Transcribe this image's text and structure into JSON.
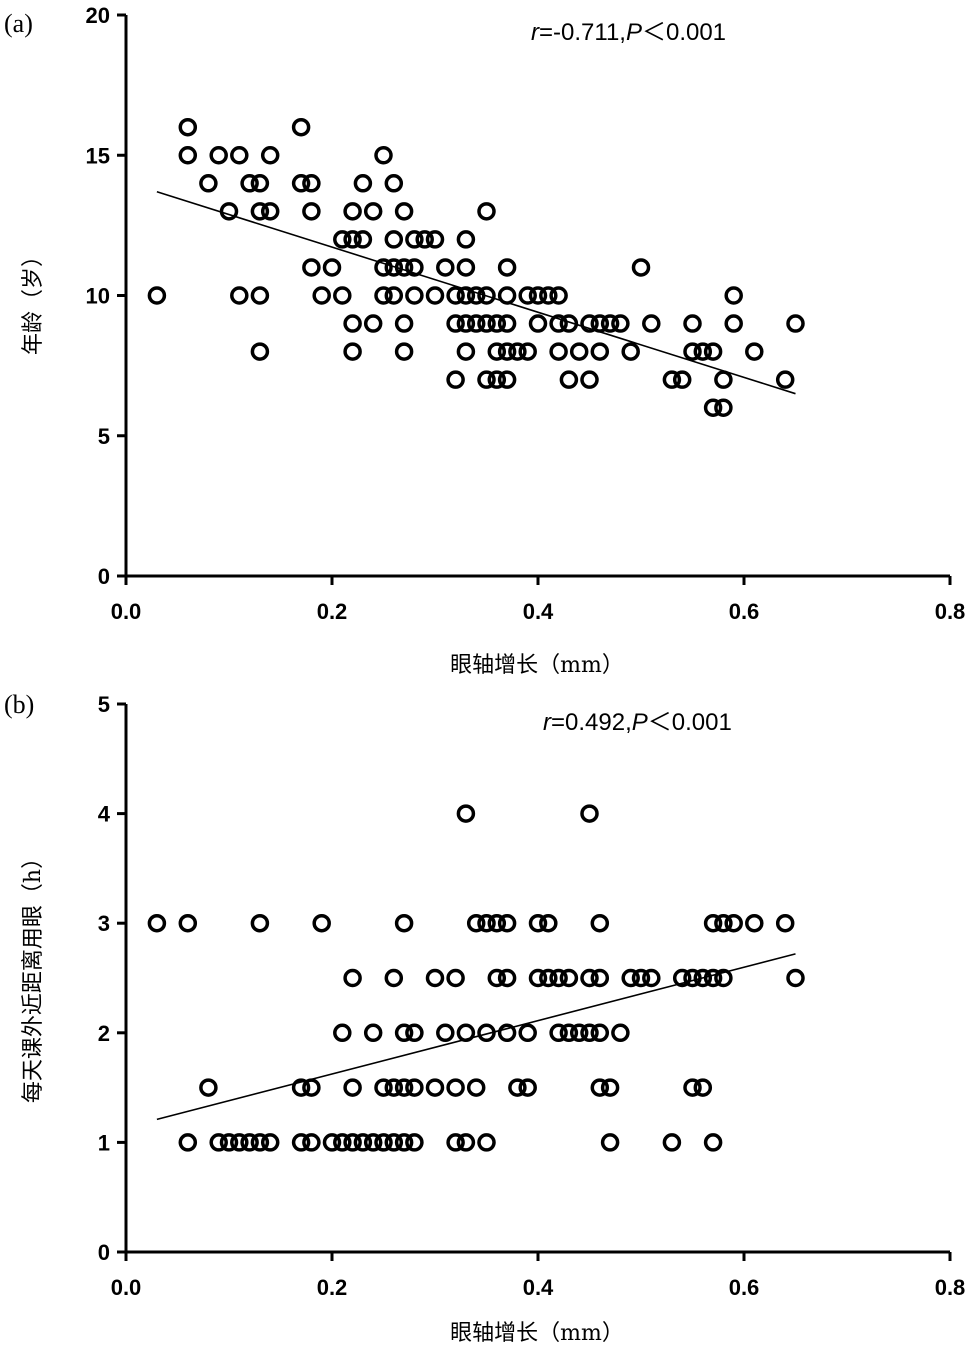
{
  "chart_data": [
    {
      "type": "scatter",
      "panel_label": "(a)",
      "xlabel": "眼轴增长（mm）",
      "ylabel": "年龄（岁）",
      "xlim": [
        0.0,
        0.8
      ],
      "ylim": [
        0,
        20
      ],
      "x_ticks": [
        "0.0",
        "0.2",
        "0.4",
        "0.6",
        "0.8"
      ],
      "y_ticks": [
        "0",
        "5",
        "10",
        "15",
        "20"
      ],
      "stat": {
        "r_label": "r",
        "r_value": "=-0.711,",
        "p_label": "P",
        "p_value": "＜0.001"
      },
      "fit_line": {
        "x": [
          0.03,
          0.65
        ],
        "y": [
          13.7,
          6.5
        ]
      },
      "points": [
        [
          0.03,
          10
        ],
        [
          0.06,
          16
        ],
        [
          0.06,
          15
        ],
        [
          0.08,
          14
        ],
        [
          0.09,
          15
        ],
        [
          0.1,
          13
        ],
        [
          0.11,
          15
        ],
        [
          0.11,
          10
        ],
        [
          0.12,
          14
        ],
        [
          0.13,
          14
        ],
        [
          0.13,
          13
        ],
        [
          0.13,
          10
        ],
        [
          0.13,
          8
        ],
        [
          0.14,
          15
        ],
        [
          0.14,
          13
        ],
        [
          0.17,
          16
        ],
        [
          0.17,
          14
        ],
        [
          0.18,
          14
        ],
        [
          0.18,
          13
        ],
        [
          0.18,
          11
        ],
        [
          0.19,
          10
        ],
        [
          0.2,
          11
        ],
        [
          0.21,
          12
        ],
        [
          0.21,
          10
        ],
        [
          0.22,
          13
        ],
        [
          0.22,
          12
        ],
        [
          0.22,
          9
        ],
        [
          0.22,
          8
        ],
        [
          0.23,
          14
        ],
        [
          0.23,
          12
        ],
        [
          0.24,
          13
        ],
        [
          0.24,
          9
        ],
        [
          0.25,
          15
        ],
        [
          0.25,
          11
        ],
        [
          0.25,
          10
        ],
        [
          0.26,
          14
        ],
        [
          0.26,
          12
        ],
        [
          0.26,
          11
        ],
        [
          0.26,
          10
        ],
        [
          0.27,
          13
        ],
        [
          0.27,
          11
        ],
        [
          0.27,
          9
        ],
        [
          0.27,
          8
        ],
        [
          0.28,
          12
        ],
        [
          0.28,
          11
        ],
        [
          0.28,
          10
        ],
        [
          0.29,
          12
        ],
        [
          0.3,
          12
        ],
        [
          0.3,
          10
        ],
        [
          0.31,
          11
        ],
        [
          0.32,
          10
        ],
        [
          0.32,
          9
        ],
        [
          0.32,
          7
        ],
        [
          0.33,
          12
        ],
        [
          0.33,
          11
        ],
        [
          0.33,
          10
        ],
        [
          0.33,
          9
        ],
        [
          0.33,
          8
        ],
        [
          0.34,
          10
        ],
        [
          0.34,
          9
        ],
        [
          0.35,
          13
        ],
        [
          0.35,
          10
        ],
        [
          0.35,
          9
        ],
        [
          0.35,
          7
        ],
        [
          0.36,
          9
        ],
        [
          0.36,
          8
        ],
        [
          0.36,
          7
        ],
        [
          0.37,
          11
        ],
        [
          0.37,
          10
        ],
        [
          0.37,
          9
        ],
        [
          0.37,
          8
        ],
        [
          0.37,
          7
        ],
        [
          0.38,
          8
        ],
        [
          0.39,
          10
        ],
        [
          0.39,
          8
        ],
        [
          0.4,
          10
        ],
        [
          0.4,
          9
        ],
        [
          0.41,
          10
        ],
        [
          0.42,
          10
        ],
        [
          0.42,
          9
        ],
        [
          0.42,
          8
        ],
        [
          0.43,
          9
        ],
        [
          0.43,
          7
        ],
        [
          0.44,
          8
        ],
        [
          0.45,
          9
        ],
        [
          0.45,
          7
        ],
        [
          0.46,
          9
        ],
        [
          0.46,
          8
        ],
        [
          0.47,
          9
        ],
        [
          0.48,
          9
        ],
        [
          0.49,
          8
        ],
        [
          0.5,
          11
        ],
        [
          0.51,
          9
        ],
        [
          0.53,
          7
        ],
        [
          0.54,
          7
        ],
        [
          0.55,
          9
        ],
        [
          0.55,
          8
        ],
        [
          0.56,
          8
        ],
        [
          0.57,
          8
        ],
        [
          0.57,
          6
        ],
        [
          0.58,
          7
        ],
        [
          0.58,
          6
        ],
        [
          0.59,
          10
        ],
        [
          0.59,
          9
        ],
        [
          0.61,
          8
        ],
        [
          0.64,
          7
        ],
        [
          0.65,
          9
        ]
      ]
    },
    {
      "type": "scatter",
      "panel_label": "(b)",
      "xlabel": "眼轴增长（mm）",
      "ylabel": "每天课外近距离用眼（h）",
      "xlim": [
        0.0,
        0.8
      ],
      "ylim": [
        0,
        5
      ],
      "x_ticks": [
        "0.0",
        "0.2",
        "0.4",
        "0.6",
        "0.8"
      ],
      "y_ticks": [
        "0",
        "1",
        "2",
        "3",
        "4",
        "5"
      ],
      "stat": {
        "r_label": "r",
        "r_value": "=0.492,",
        "p_label": "P",
        "p_value": "＜0.001"
      },
      "fit_line": {
        "x": [
          0.03,
          0.65
        ],
        "y": [
          1.21,
          2.72
        ]
      },
      "points": [
        [
          0.03,
          3
        ],
        [
          0.06,
          3
        ],
        [
          0.06,
          1
        ],
        [
          0.08,
          1.5
        ],
        [
          0.09,
          1
        ],
        [
          0.1,
          1
        ],
        [
          0.11,
          1
        ],
        [
          0.12,
          1
        ],
        [
          0.13,
          3
        ],
        [
          0.13,
          1
        ],
        [
          0.14,
          1
        ],
        [
          0.17,
          1.5
        ],
        [
          0.17,
          1
        ],
        [
          0.18,
          1.5
        ],
        [
          0.18,
          1
        ],
        [
          0.19,
          3
        ],
        [
          0.2,
          1
        ],
        [
          0.21,
          2
        ],
        [
          0.21,
          1
        ],
        [
          0.22,
          2.5
        ],
        [
          0.22,
          1.5
        ],
        [
          0.22,
          1
        ],
        [
          0.23,
          1
        ],
        [
          0.24,
          2
        ],
        [
          0.24,
          1
        ],
        [
          0.25,
          1.5
        ],
        [
          0.25,
          1
        ],
        [
          0.26,
          2.5
        ],
        [
          0.26,
          1.5
        ],
        [
          0.26,
          1
        ],
        [
          0.27,
          3
        ],
        [
          0.27,
          2
        ],
        [
          0.27,
          1.5
        ],
        [
          0.27,
          1
        ],
        [
          0.28,
          2
        ],
        [
          0.28,
          1.5
        ],
        [
          0.28,
          1
        ],
        [
          0.3,
          2.5
        ],
        [
          0.3,
          1.5
        ],
        [
          0.31,
          2
        ],
        [
          0.32,
          2.5
        ],
        [
          0.32,
          1.5
        ],
        [
          0.32,
          1
        ],
        [
          0.33,
          4
        ],
        [
          0.33,
          2
        ],
        [
          0.33,
          1
        ],
        [
          0.34,
          3
        ],
        [
          0.34,
          1.5
        ],
        [
          0.35,
          3
        ],
        [
          0.35,
          2
        ],
        [
          0.35,
          1
        ],
        [
          0.36,
          3
        ],
        [
          0.36,
          2.5
        ],
        [
          0.37,
          3
        ],
        [
          0.37,
          2.5
        ],
        [
          0.37,
          2
        ],
        [
          0.38,
          1.5
        ],
        [
          0.39,
          2
        ],
        [
          0.39,
          1.5
        ],
        [
          0.4,
          3
        ],
        [
          0.4,
          2.5
        ],
        [
          0.41,
          3
        ],
        [
          0.41,
          2.5
        ],
        [
          0.42,
          2.5
        ],
        [
          0.42,
          2
        ],
        [
          0.43,
          2.5
        ],
        [
          0.43,
          2
        ],
        [
          0.44,
          2
        ],
        [
          0.45,
          4
        ],
        [
          0.45,
          2.5
        ],
        [
          0.45,
          2
        ],
        [
          0.46,
          3
        ],
        [
          0.46,
          2.5
        ],
        [
          0.46,
          2
        ],
        [
          0.46,
          1.5
        ],
        [
          0.47,
          1.5
        ],
        [
          0.47,
          1
        ],
        [
          0.48,
          2
        ],
        [
          0.49,
          2.5
        ],
        [
          0.5,
          2.5
        ],
        [
          0.51,
          2.5
        ],
        [
          0.53,
          1
        ],
        [
          0.54,
          2.5
        ],
        [
          0.55,
          2.5
        ],
        [
          0.55,
          1.5
        ],
        [
          0.56,
          2.5
        ],
        [
          0.56,
          1.5
        ],
        [
          0.57,
          3
        ],
        [
          0.57,
          2.5
        ],
        [
          0.57,
          1
        ],
        [
          0.58,
          3
        ],
        [
          0.58,
          2.5
        ],
        [
          0.59,
          3
        ],
        [
          0.61,
          3
        ],
        [
          0.64,
          3
        ],
        [
          0.65,
          2.5
        ]
      ]
    }
  ]
}
